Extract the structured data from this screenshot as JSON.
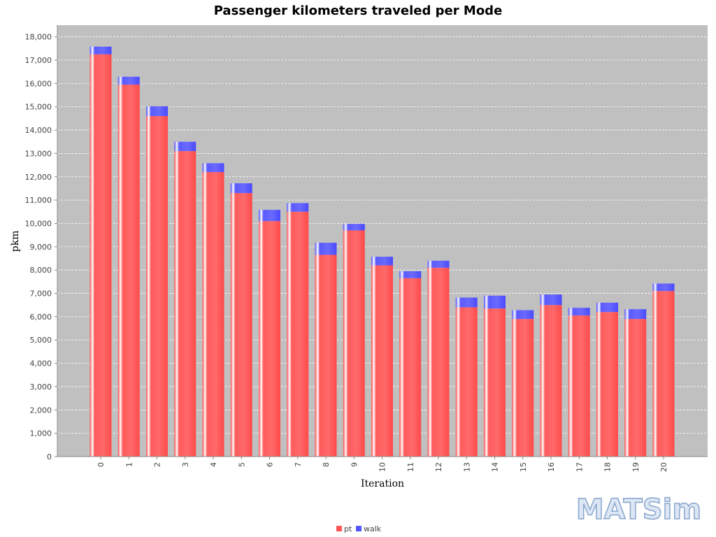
{
  "chart_data": {
    "type": "bar",
    "stacked": true,
    "title": "Passenger kilometers traveled per Mode",
    "xlabel": "Iteration",
    "ylabel": "pkm",
    "ylim": [
      0,
      18500
    ],
    "ytick_step": 1000,
    "grid": true,
    "legend_position": "bottom",
    "categories": [
      "0",
      "1",
      "2",
      "3",
      "4",
      "5",
      "6",
      "7",
      "8",
      "9",
      "10",
      "11",
      "12",
      "13",
      "14",
      "15",
      "16",
      "17",
      "18",
      "19",
      "20"
    ],
    "series": [
      {
        "name": "pt",
        "color": "#ff5555",
        "values": [
          17250,
          15950,
          14600,
          13100,
          12200,
          11300,
          10100,
          10500,
          8650,
          9700,
          8200,
          7650,
          8100,
          6400,
          6350,
          5900,
          6500,
          6050,
          6200,
          5900,
          7100
        ]
      },
      {
        "name": "walk",
        "color": "#5555ff",
        "values": [
          330,
          340,
          420,
          400,
          380,
          420,
          480,
          370,
          520,
          280,
          370,
          300,
          300,
          420,
          550,
          380,
          450,
          330,
          400,
          420,
          320
        ]
      }
    ]
  },
  "logo_text": "MATSim"
}
